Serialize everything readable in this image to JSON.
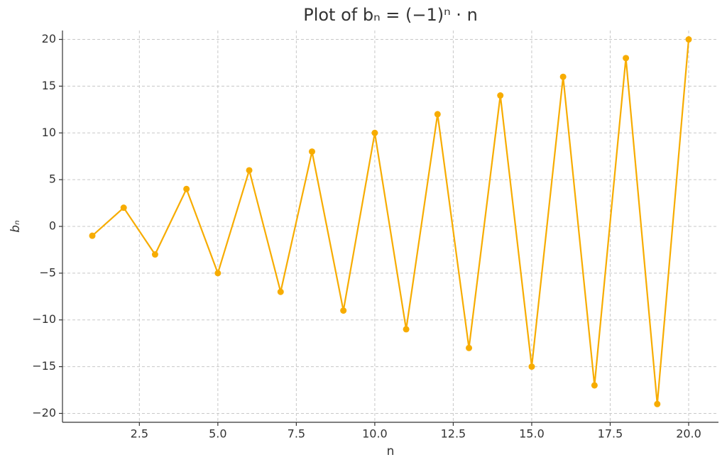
{
  "chart_data": {
    "type": "line",
    "title": "Plot of bₙ = (−1)ⁿ · n",
    "x_label": "n",
    "y_label": "bₙ",
    "x": [
      1,
      2,
      3,
      4,
      5,
      6,
      7,
      8,
      9,
      10,
      11,
      12,
      13,
      14,
      15,
      16,
      17,
      18,
      19,
      20
    ],
    "values": [
      -1,
      2,
      -3,
      4,
      -5,
      6,
      -7,
      8,
      -9,
      10,
      -11,
      12,
      -13,
      14,
      -15,
      16,
      -17,
      18,
      -19,
      20
    ],
    "color": "#f7ac00",
    "markers": true,
    "grid": true,
    "xlim": [
      0.05,
      20.95
    ],
    "ylim": [
      -20.95,
      20.95
    ],
    "xticks": [
      2.5,
      {
        "value": 5,
        "label": "5.0"
      },
      7.5,
      {
        "value": 10,
        "label": "10.0"
      },
      12.5,
      {
        "value": 15,
        "label": "15.0"
      },
      17.5,
      {
        "value": 20,
        "label": "20.0"
      }
    ],
    "yticks": [
      {
        "value": -20,
        "label": "−20"
      },
      {
        "value": -15,
        "label": "−15"
      },
      {
        "value": -10,
        "label": "−10"
      },
      {
        "value": -5,
        "label": "−5"
      },
      0,
      5,
      10,
      15,
      20
    ]
  }
}
